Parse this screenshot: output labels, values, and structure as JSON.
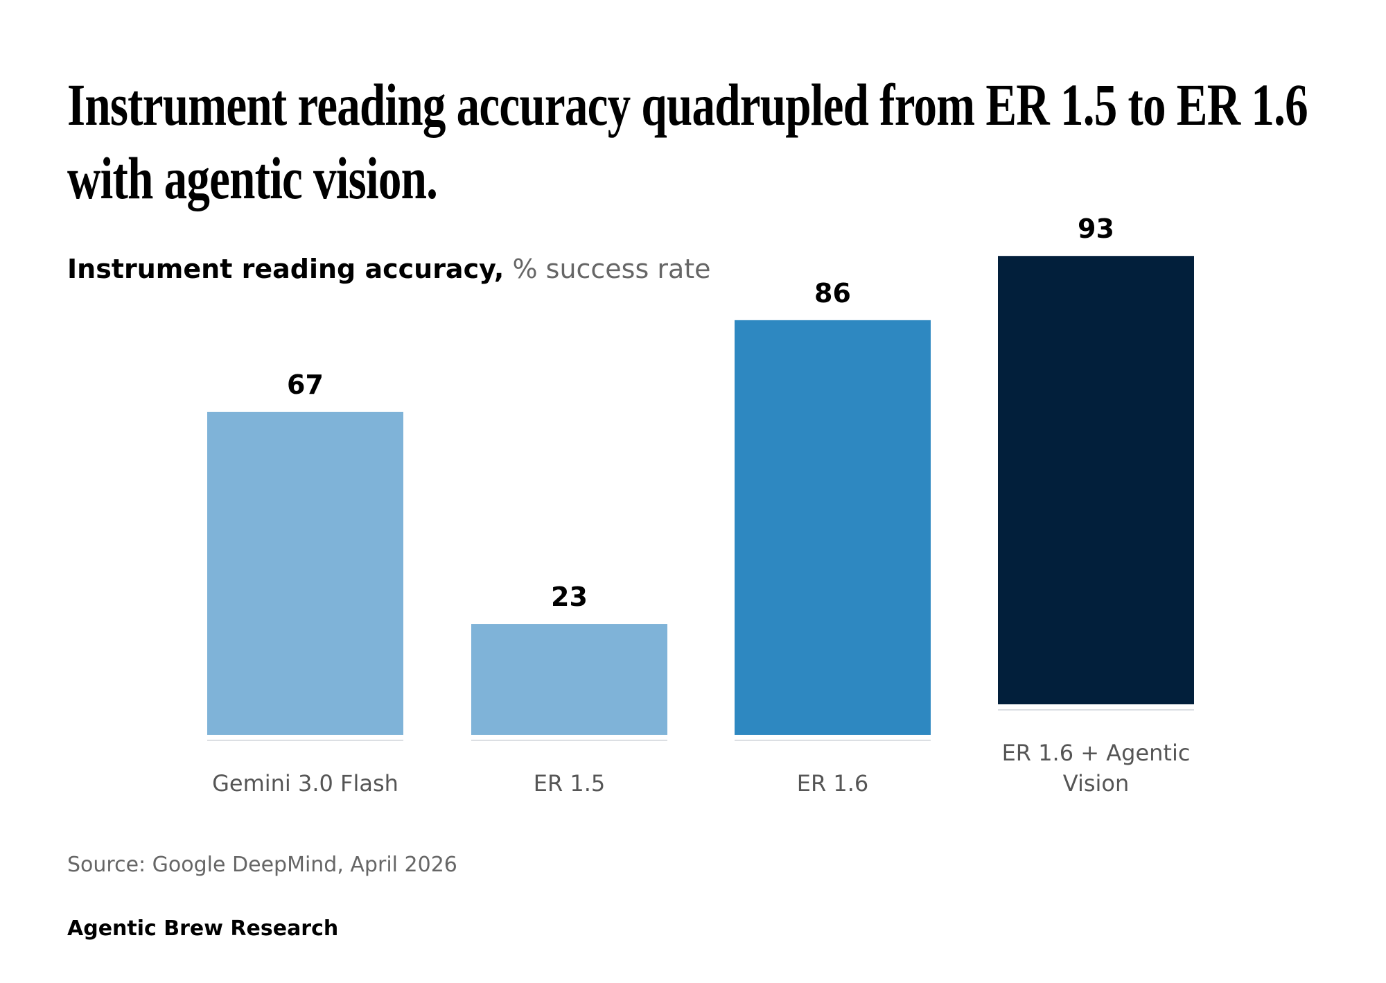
{
  "title_lines": [
    "Instrument reading accuracy quadrupled from ER 1.5 to ER 1.6",
    "with agentic vision."
  ],
  "subtitle": {
    "metric": "Instrument reading accuracy,",
    "unit": "% success rate"
  },
  "source": "Source: Google DeepMind, April 2026",
  "brand": "Agentic Brew Research",
  "chart_data": {
    "type": "bar",
    "title": "Instrument reading accuracy quadrupled from ER 1.5 to ER 1.6 with agentic vision.",
    "subtitle": "Instrument reading accuracy, % success rate",
    "categories": [
      "Gemini 3.0 Flash",
      "ER 1.5",
      "ER 1.6",
      "ER 1.6 + Agentic Vision"
    ],
    "category_lines": [
      [
        "Gemini 3.0 Flash"
      ],
      [
        "ER 1.5"
      ],
      [
        "ER 1.6"
      ],
      [
        "ER 1.6 + Agentic",
        "Vision"
      ]
    ],
    "values": [
      67,
      23,
      86,
      93
    ],
    "colors": [
      "#7fb3d8",
      "#7fb3d8",
      "#2e88c1",
      "#021f3b"
    ],
    "ylim": [
      0,
      100
    ],
    "grid": false,
    "legend": "none",
    "data_labels": true
  }
}
